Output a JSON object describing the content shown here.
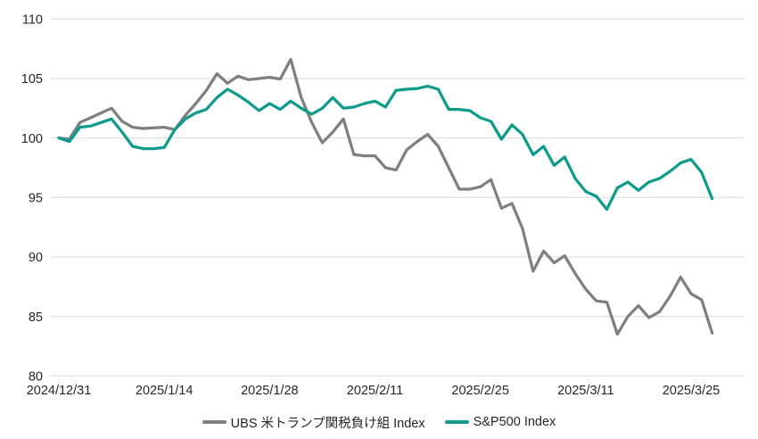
{
  "chart_data": {
    "type": "line",
    "title": "",
    "xlabel": "",
    "ylabel": "",
    "ylim": [
      80,
      110
    ],
    "y_ticks": [
      110,
      105,
      100,
      95,
      90,
      85,
      80
    ],
    "y_tick_labels": [
      "110",
      "105",
      "100",
      "95",
      "90",
      "85",
      "80"
    ],
    "x_tick_indices": [
      0,
      10,
      20,
      30,
      40,
      50,
      60
    ],
    "x_tick_labels": [
      "2024/12/31",
      "2025/1/14",
      "2025/1/28",
      "2025/2/11",
      "2025/2/25",
      "2025/3/11",
      "2025/3/25"
    ],
    "grid": true,
    "grid_color": "#d9d9d9",
    "axis_text_color": "#262626",
    "legend_position": "bottom",
    "series": [
      {
        "name": "UBS 米トランプ関税負け組 Index",
        "color": "#7f7f7f",
        "values": [
          100.0,
          99.9,
          101.3,
          101.7,
          102.1,
          102.5,
          101.4,
          100.9,
          100.8,
          100.85,
          100.9,
          100.7,
          101.9,
          102.9,
          104.0,
          105.4,
          104.6,
          105.2,
          104.9,
          105.0,
          105.1,
          104.95,
          106.6,
          103.4,
          101.3,
          99.6,
          100.5,
          101.6,
          98.6,
          98.5,
          98.5,
          97.5,
          97.3,
          99.0,
          99.7,
          100.3,
          99.3,
          97.5,
          95.7,
          95.7,
          95.9,
          96.5,
          94.1,
          94.5,
          92.4,
          88.8,
          90.5,
          89.5,
          90.1,
          88.6,
          87.3,
          86.3,
          86.2,
          83.5,
          85.0,
          85.9,
          84.9,
          85.4,
          86.7,
          88.3,
          86.9,
          86.4,
          83.6
        ]
      },
      {
        "name": "S&P500 Index",
        "color": "#0f9b8c",
        "values": [
          100.0,
          99.7,
          100.9,
          101.0,
          101.3,
          101.6,
          100.5,
          99.3,
          99.1,
          99.1,
          99.2,
          100.7,
          101.6,
          102.1,
          102.4,
          103.4,
          104.1,
          103.6,
          103.0,
          102.3,
          102.9,
          102.4,
          103.1,
          102.5,
          102.0,
          102.5,
          103.4,
          102.5,
          102.6,
          102.9,
          103.1,
          102.6,
          104.0,
          104.1,
          104.15,
          104.35,
          104.1,
          102.4,
          102.4,
          102.3,
          101.7,
          101.4,
          99.9,
          101.1,
          100.3,
          98.6,
          99.3,
          97.7,
          98.4,
          96.6,
          95.5,
          95.1,
          94.0,
          95.8,
          96.3,
          95.6,
          96.3,
          96.6,
          97.2,
          97.9,
          98.2,
          97.1,
          94.9
        ]
      }
    ]
  },
  "legend": {
    "items": [
      {
        "label": "UBS 米トランプ関税負け組 Index"
      },
      {
        "label": "S&P500 Index"
      }
    ]
  }
}
